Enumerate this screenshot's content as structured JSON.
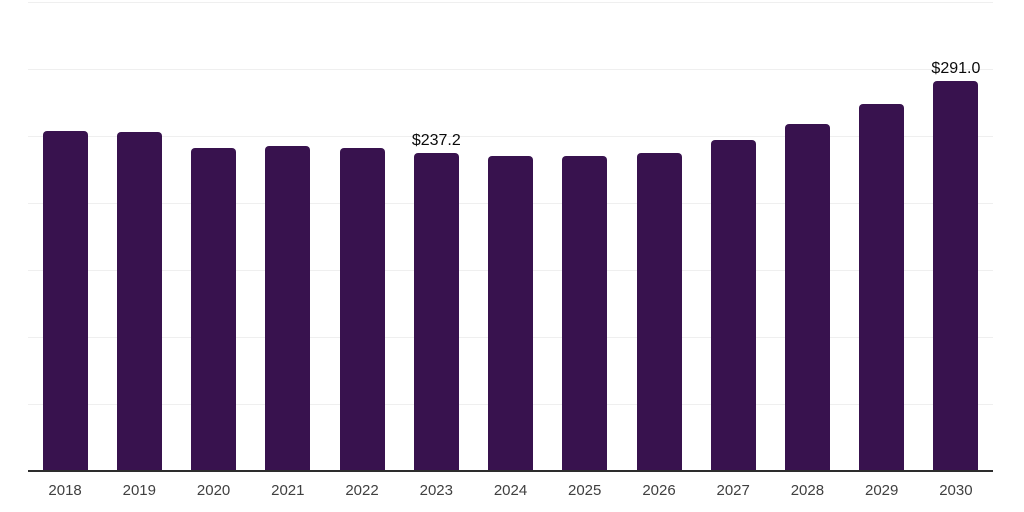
{
  "chart_data": {
    "type": "bar",
    "title": "",
    "xlabel": "",
    "ylabel": "",
    "categories": [
      "2018",
      "2019",
      "2020",
      "2021",
      "2022",
      "2023",
      "2024",
      "2025",
      "2026",
      "2027",
      "2028",
      "2029",
      "2030"
    ],
    "values": [
      253.6,
      252.7,
      241.3,
      242.4,
      241.3,
      237.2,
      235.3,
      235.2,
      237.0,
      246.8,
      259.0,
      273.7,
      291.0
    ],
    "point_labels": [
      "",
      "",
      "",
      "",
      "",
      "$237.2",
      "",
      "",
      "",
      "",
      "",
      "",
      "$291.0"
    ],
    "ylim": [
      0,
      350
    ],
    "grid_step": 50,
    "grid": "horizontal",
    "y_axis_labels": "hidden",
    "legend_position": "none",
    "colors": {
      "bar": "#38124E",
      "gridline": "#EFEFEF",
      "axis_line": "#2D2D2D",
      "data_label": "#0A0A0A",
      "tick_label": "#404040",
      "background": "#FFFFFF"
    }
  }
}
